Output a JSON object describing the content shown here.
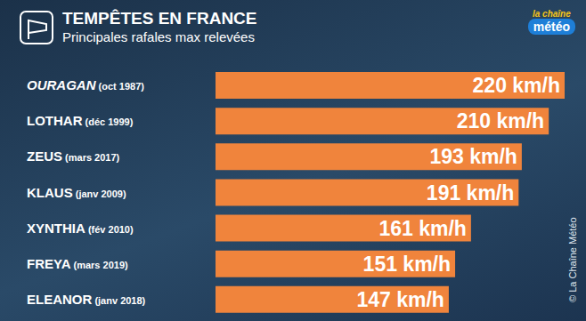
{
  "chart_data": {
    "type": "bar",
    "orientation": "horizontal",
    "title": "TEMPÊTES EN FRANCE",
    "subtitle": "Principales rafales max relevées",
    "logo": [
      "la chaîne",
      "météo"
    ],
    "credit": "© La Chaîne Météo",
    "categories": [
      "OURAGAN (oct 1987)",
      "LOTHAR (déc 1999)",
      "ZEUS (mars 2017)",
      "KLAUS (janv 2009)",
      "XYNTHIA (fév 2010)",
      "FREYA (mars 2019)",
      "ELEANOR (janv 2018)"
    ],
    "values": [
      220,
      210,
      193,
      191,
      161,
      151,
      147
    ],
    "value_labels": [
      "220 km/h",
      "210 km/h",
      "193 km/h",
      "191 km/h",
      "161 km/h",
      "151 km/h",
      "147 km/h"
    ],
    "color": "#f0843c",
    "data_labels": true,
    "tick_labels": false,
    "grid": false
  }
}
